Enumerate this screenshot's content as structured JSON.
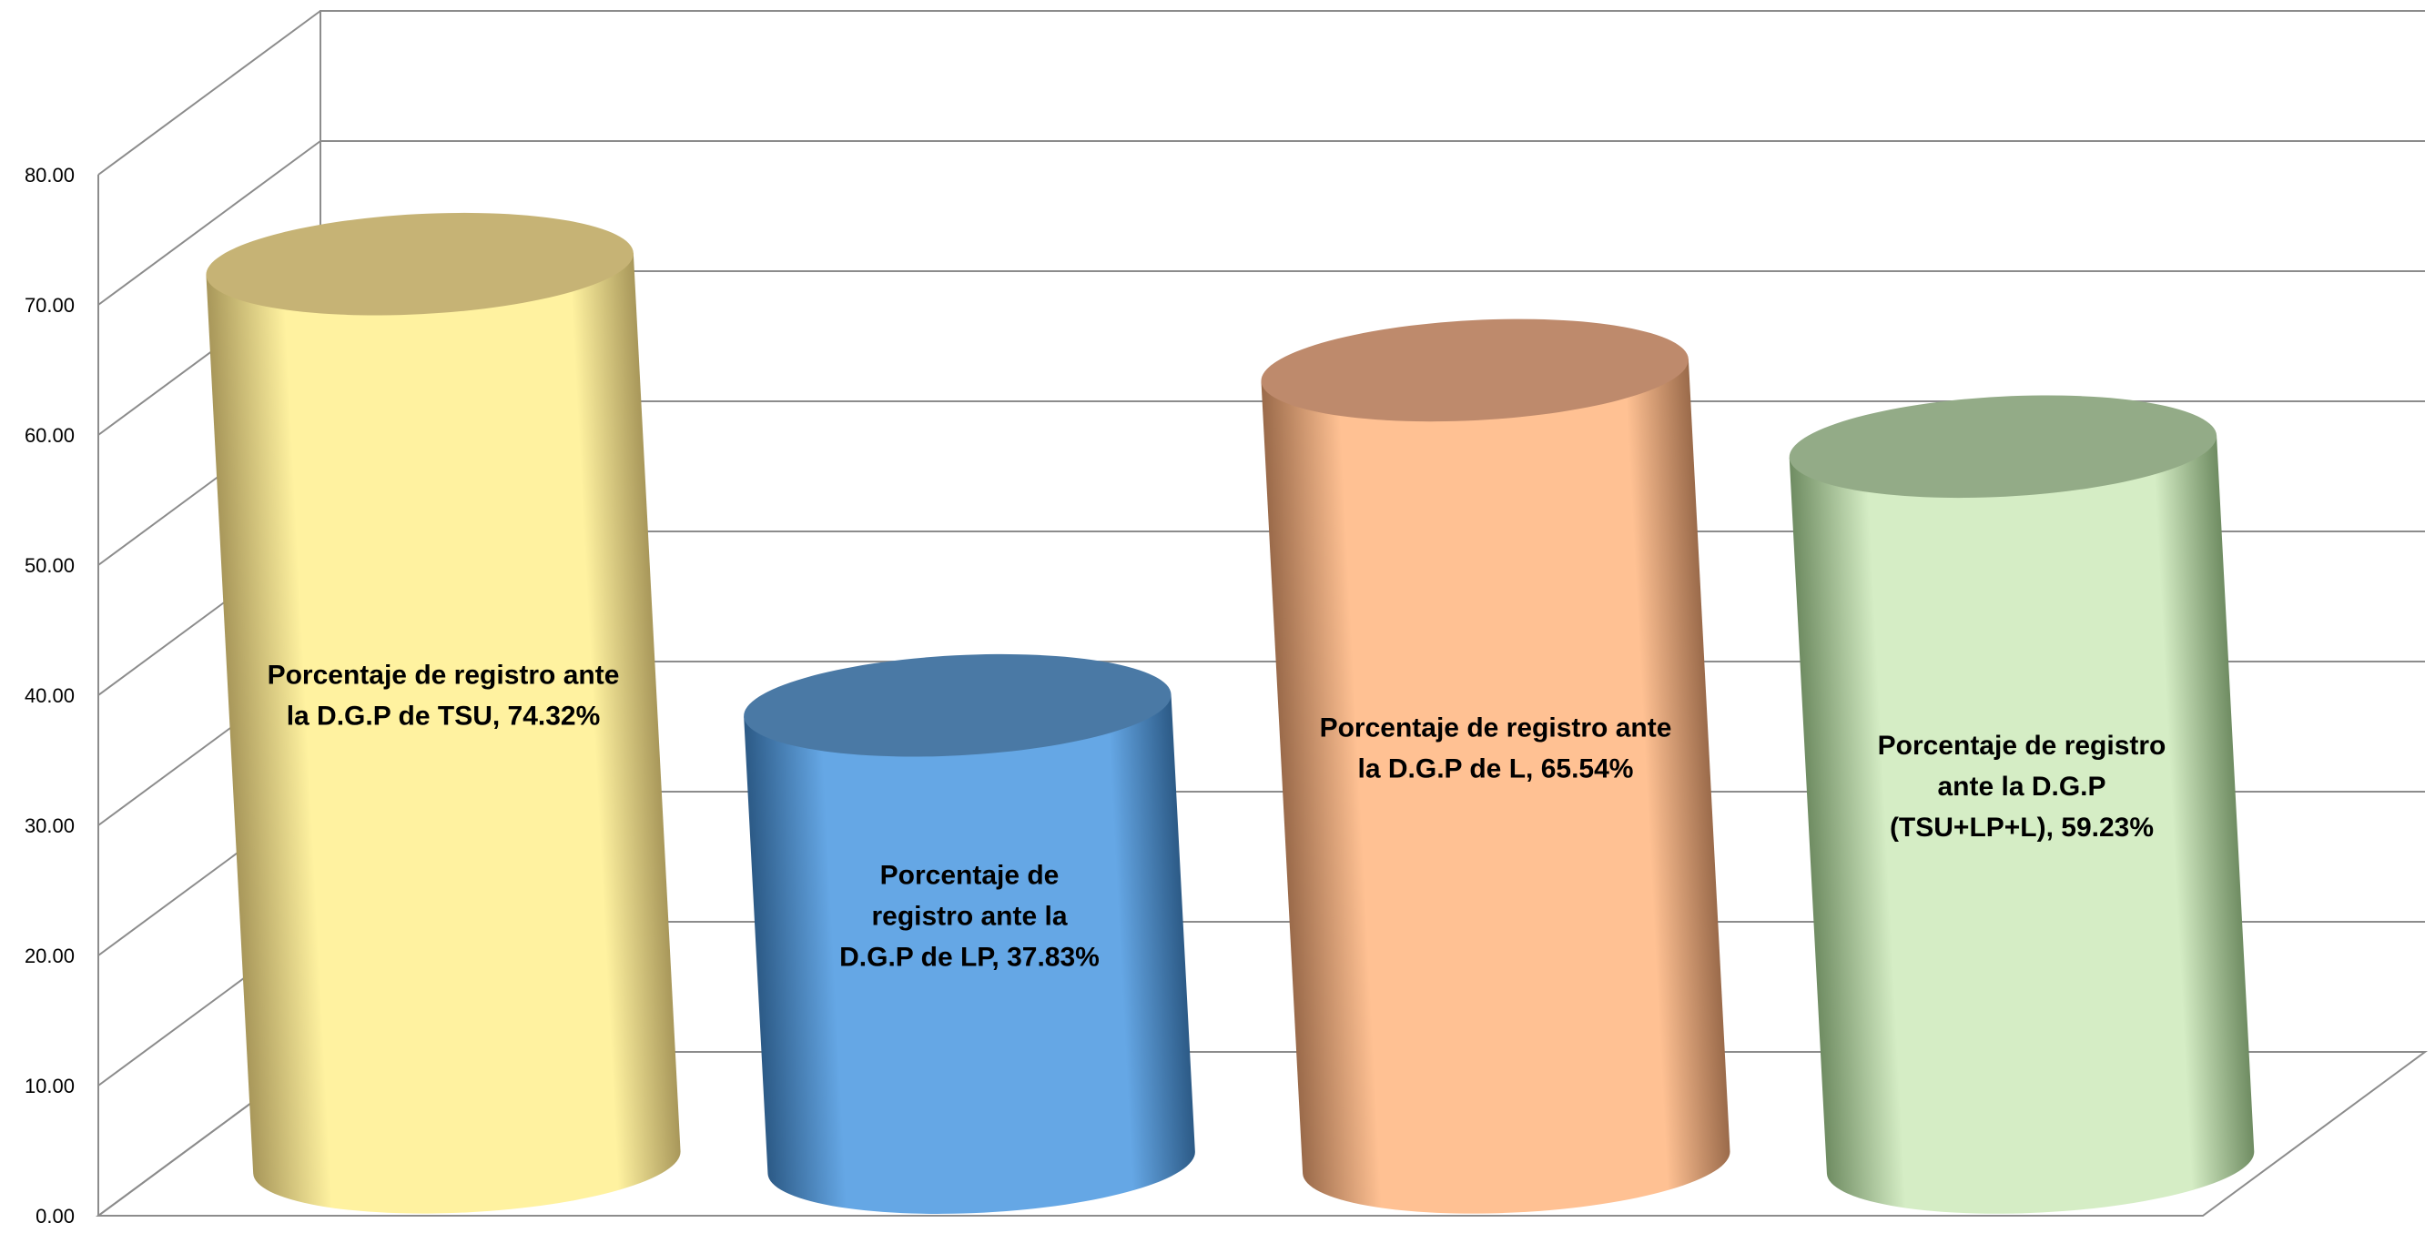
{
  "chart_data": {
    "type": "bar",
    "style": "3d-cylinder",
    "title": "",
    "xlabel": "",
    "ylabel": "",
    "ylim": [
      0,
      80
    ],
    "yticks": [
      "0.00",
      "10.00",
      "20.00",
      "30.00",
      "40.00",
      "50.00",
      "60.00",
      "70.00",
      "80.00"
    ],
    "grid": true,
    "legend": "none",
    "categories": [
      "Porcentaje de registro ante la D.G.P de TSU",
      "Porcentaje de registro ante la D.G.P de LP",
      "Porcentaje de registro ante la D.G.P de L",
      "Porcentaje de registro ante la D.G.P (TSU+LP+L)"
    ],
    "values": [
      74.32,
      37.83,
      65.54,
      59.23
    ],
    "data_labels": [
      [
        "Porcentaje de registro ante",
        "la D.G.P de TSU, 74.32%"
      ],
      [
        "Porcentaje de",
        "registro ante la",
        "D.G.P de LP, 37.83%"
      ],
      [
        "Porcentaje de registro ante",
        "la D.G.P de L, 65.54%"
      ],
      [
        "Porcentaje de registro",
        "ante la D.G.P",
        "(TSU+LP+L), 59.23%"
      ]
    ],
    "colors": [
      {
        "light": "#FFF2A0",
        "dark": "#A8975A",
        "top": "#C6B375"
      },
      {
        "light": "#65A7E5",
        "dark": "#2C5A86",
        "top": "#4A79A5"
      },
      {
        "light": "#FFC193",
        "dark": "#9A6A4A",
        "top": "#BE8A6C"
      },
      {
        "light": "#D5EDC5",
        "dark": "#6F8C62",
        "top": "#93AB87"
      }
    ]
  }
}
